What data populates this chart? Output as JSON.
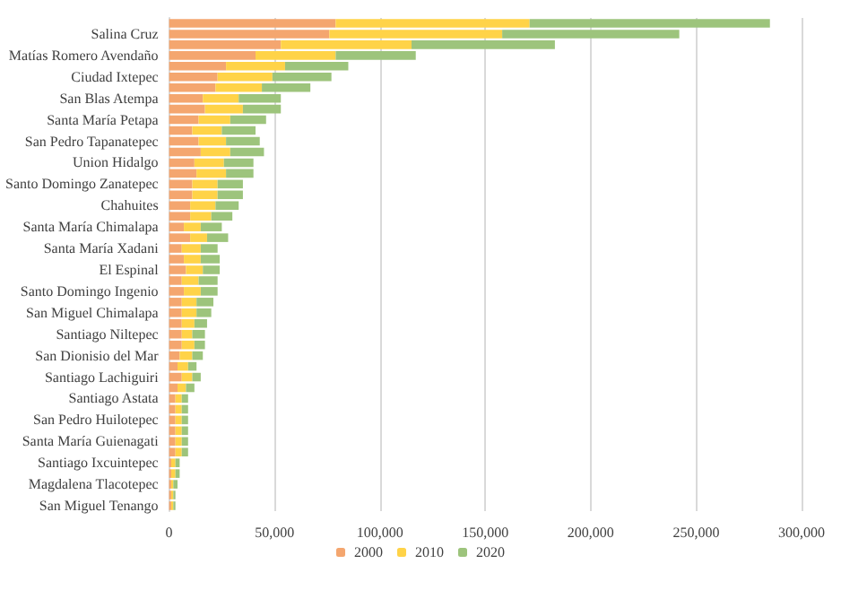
{
  "chart_data": {
    "type": "bar",
    "orientation": "horizontal",
    "stacked": true,
    "categories": [
      null,
      "Salina Cruz",
      null,
      "Matías Romero Avendaño",
      null,
      "Ciudad Ixtepec",
      null,
      "San Blas Atempa",
      null,
      "Santa María Petapa",
      null,
      "San Pedro Tapanatepec",
      null,
      "Union Hidalgo",
      null,
      "Santo Domingo Zanatepec",
      null,
      "Chahuites",
      null,
      "Santa María Chimalapa",
      null,
      "Santa María Xadani",
      null,
      "El Espinal",
      null,
      "Santo Domingo Ingenio",
      null,
      "San Miguel Chimalapa",
      null,
      "Santiago Niltepec",
      null,
      "San Dionisio del Mar",
      null,
      "Santiago Lachiguiri",
      null,
      "Santiago Astata",
      null,
      "San Pedro Huilotepec",
      null,
      "Santa María Guienagati",
      null,
      "Santiago Ixcuintepec",
      null,
      "Magdalena Tlacotepec",
      null,
      "San Miguel Tenango"
    ],
    "series": [
      {
        "name": "2000",
        "color": "#f4a66f",
        "values": [
          79000,
          76000,
          53000,
          41000,
          27000,
          23000,
          22000,
          16000,
          17000,
          14000,
          11000,
          14000,
          15000,
          12000,
          13000,
          11000,
          11000,
          10000,
          10000,
          7000,
          10000,
          6000,
          7000,
          8000,
          6000,
          7000,
          6000,
          6000,
          6000,
          6000,
          6000,
          5000,
          4000,
          6000,
          4000,
          3000,
          3000,
          3000,
          3000,
          3000,
          3000,
          1000,
          1000,
          1000,
          1000,
          1000
        ]
      },
      {
        "name": "2010",
        "color": "#ffd348",
        "values": [
          92000,
          82000,
          62000,
          38000,
          28000,
          26000,
          22000,
          17000,
          18000,
          15000,
          14000,
          13000,
          14000,
          14000,
          14000,
          12000,
          12000,
          12000,
          10000,
          8000,
          8000,
          9000,
          8000,
          8000,
          8000,
          8000,
          7000,
          7000,
          6000,
          5000,
          6000,
          6000,
          5000,
          5000,
          4000,
          3000,
          3000,
          3000,
          3000,
          3000,
          3000,
          2000,
          2000,
          1000,
          1000,
          1000
        ]
      },
      {
        "name": "2020",
        "color": "#9dc47c",
        "values": [
          114000,
          84000,
          68000,
          38000,
          30000,
          28000,
          23000,
          20000,
          18000,
          17000,
          16000,
          16000,
          16000,
          14000,
          13000,
          12000,
          12000,
          11000,
          10000,
          10000,
          10000,
          8000,
          9000,
          8000,
          9000,
          8000,
          8000,
          7000,
          6000,
          6000,
          5000,
          5000,
          4000,
          4000,
          4000,
          3000,
          3000,
          3000,
          3000,
          3000,
          3000,
          2000,
          2000,
          2000,
          1000,
          1000
        ]
      }
    ],
    "xlim": [
      0,
      300000
    ],
    "xticks": [
      0,
      {
        "value": 50000,
        "label": "50,000"
      },
      {
        "value": 100000,
        "label": "100,000"
      },
      {
        "value": 150000,
        "label": "150,000"
      },
      {
        "value": 200000,
        "label": "200,000"
      },
      {
        "value": 250000,
        "label": "250,000"
      },
      {
        "value": 300000,
        "label": "300,000"
      }
    ],
    "grid": "x",
    "legend": "bottom"
  }
}
